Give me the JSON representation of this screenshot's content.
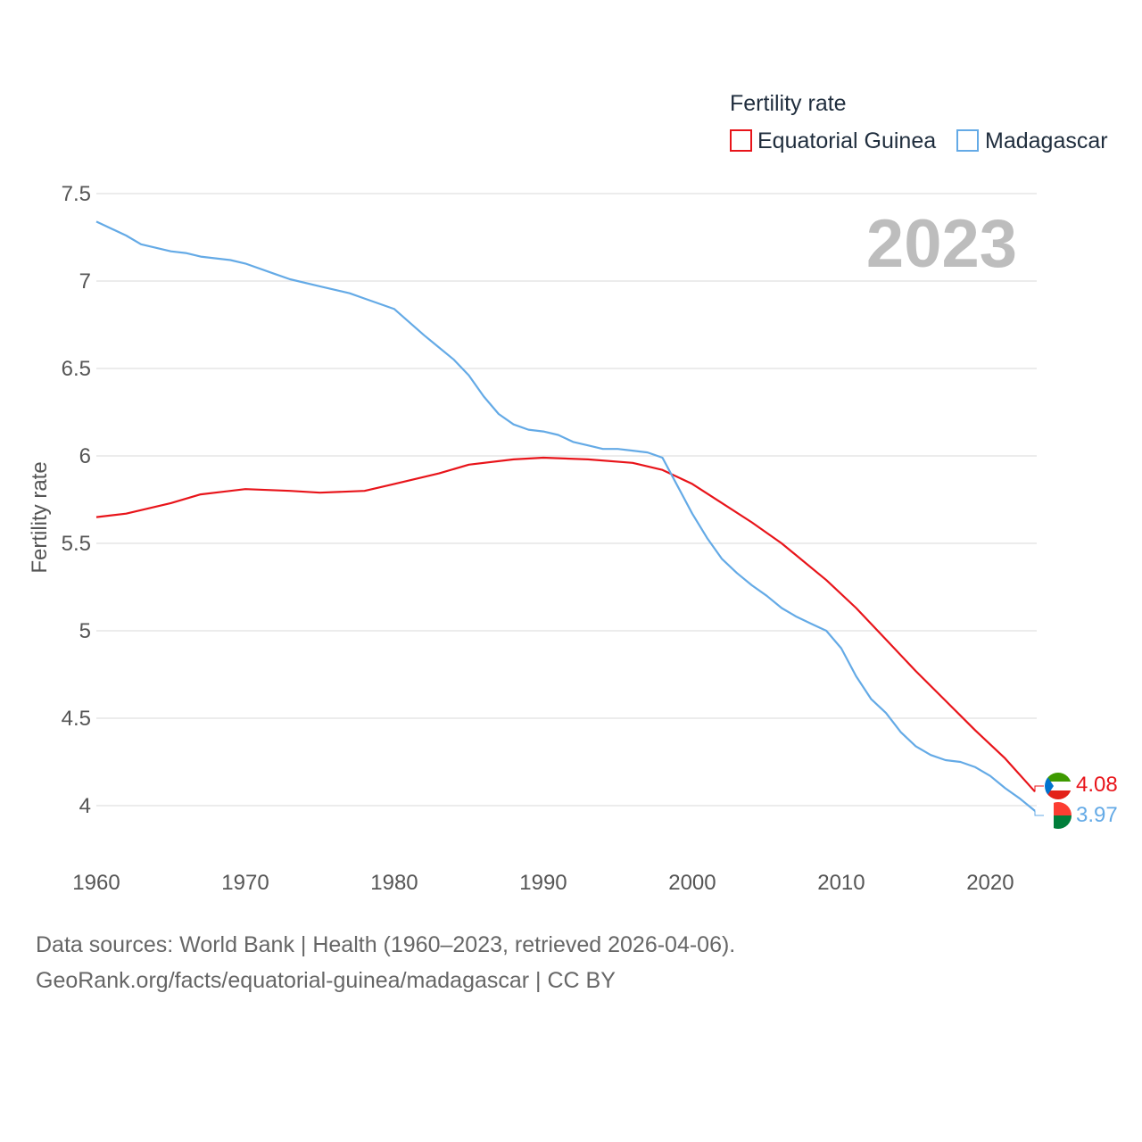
{
  "chart_data": {
    "type": "line",
    "title": "Fertility rate",
    "ylabel": "Fertility rate",
    "xlabel": "",
    "year_display": "2023",
    "xlim": [
      1960,
      2023.5
    ],
    "ylim": [
      3.9,
      7.5
    ],
    "x_ticks": [
      1960,
      1970,
      1980,
      1990,
      2000,
      2010,
      2020
    ],
    "y_ticks": [
      4,
      4.5,
      5,
      5.5,
      6,
      6.5,
      7,
      7.5
    ],
    "y_tick_labels": [
      "4",
      "4.5",
      "5",
      "5.5",
      "6",
      "6.5",
      "7",
      "7.5"
    ],
    "x_tick_labels": [
      "1960",
      "1970",
      "1980",
      "1990",
      "2000",
      "2010",
      "2020"
    ],
    "legend_position": "top-right",
    "series": [
      {
        "name": "Equatorial Guinea",
        "color": "#e8141a",
        "end_label": "4.08",
        "flag": "equatorial-guinea-flag-icon",
        "x": [
          1960,
          1962,
          1965,
          1967,
          1970,
          1973,
          1975,
          1978,
          1980,
          1983,
          1985,
          1988,
          1990,
          1993,
          1996,
          1998,
          2000,
          2002,
          2004,
          2006,
          2009,
          2011,
          2013,
          2015,
          2017,
          2019,
          2021,
          2023
        ],
        "values": [
          5.65,
          5.67,
          5.73,
          5.78,
          5.81,
          5.8,
          5.79,
          5.8,
          5.84,
          5.9,
          5.95,
          5.98,
          5.99,
          5.98,
          5.96,
          5.92,
          5.84,
          5.73,
          5.62,
          5.5,
          5.29,
          5.13,
          4.95,
          4.77,
          4.6,
          4.43,
          4.27,
          4.08
        ]
      },
      {
        "name": "Madagascar",
        "color": "#64aae6",
        "end_label": "3.97",
        "flag": "madagascar-flag-icon",
        "x": [
          1960,
          1962,
          1963,
          1965,
          1966,
          1967,
          1969,
          1970,
          1972,
          1973,
          1975,
          1977,
          1978,
          1980,
          1982,
          1983,
          1984,
          1985,
          1986,
          1987,
          1988,
          1989,
          1990,
          1991,
          1992,
          1993,
          1994,
          1995,
          1996,
          1997,
          1998,
          1999,
          2000,
          2001,
          2002,
          2003,
          2004,
          2005,
          2006,
          2007,
          2008,
          2009,
          2010,
          2011,
          2012,
          2013,
          2014,
          2015,
          2016,
          2017,
          2018,
          2019,
          2020,
          2021,
          2022,
          2023
        ],
        "values": [
          7.34,
          7.26,
          7.21,
          7.17,
          7.16,
          7.14,
          7.12,
          7.1,
          7.04,
          7.01,
          6.97,
          6.93,
          6.9,
          6.84,
          6.69,
          6.62,
          6.55,
          6.46,
          6.34,
          6.24,
          6.18,
          6.15,
          6.14,
          6.12,
          6.08,
          6.06,
          6.04,
          6.04,
          6.03,
          6.02,
          5.99,
          5.83,
          5.67,
          5.53,
          5.41,
          5.33,
          5.26,
          5.2,
          5.13,
          5.08,
          5.04,
          5.0,
          4.9,
          4.74,
          4.61,
          4.53,
          4.42,
          4.34,
          4.29,
          4.26,
          4.25,
          4.22,
          4.17,
          4.1,
          4.04,
          3.97
        ]
      }
    ]
  },
  "footer": {
    "line1": "Data sources: World Bank | Health (1960–2023, retrieved 2026-04-06).",
    "line2": "GeoRank.org/facts/equatorial-guinea/madagascar | CC BY"
  }
}
